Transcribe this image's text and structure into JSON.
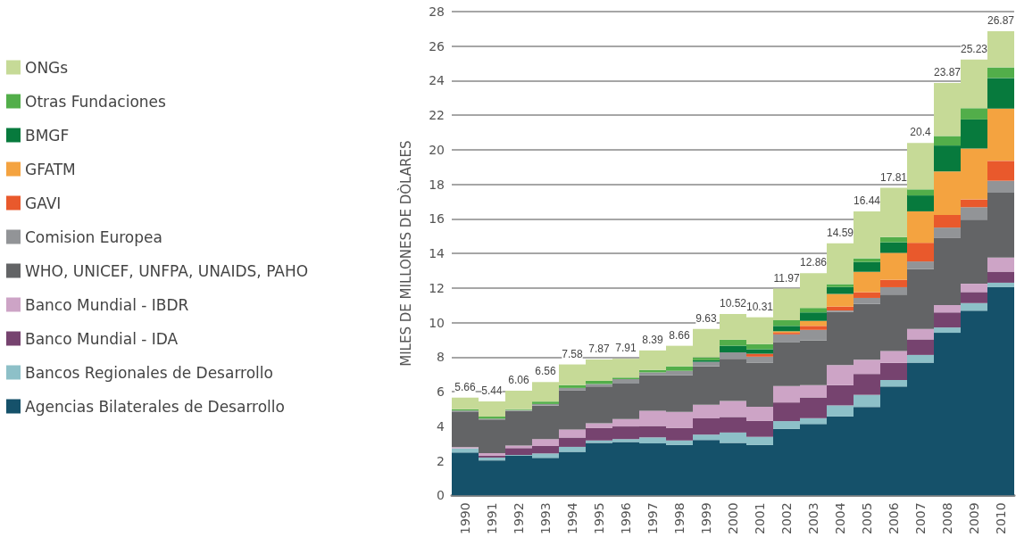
{
  "chart_data": {
    "type": "bar",
    "stacked": true,
    "ylabel": "MILES DE MILLONES DE DÒLARES",
    "categories": [
      "1990",
      "1991",
      "1992",
      "1993",
      "1994",
      "1995",
      "1996",
      "1997",
      "1998",
      "1999",
      "2000",
      "2001",
      "2002",
      "2003",
      "2004",
      "2005",
      "2006",
      "2007",
      "2008",
      "2009",
      "2010"
    ],
    "series": [
      {
        "name": "Agencias Bilaterales de Desarrollo",
        "color": "#15516a",
        "values": [
          2.48,
          2.02,
          2.29,
          2.17,
          2.52,
          3.04,
          3.09,
          3.01,
          2.92,
          3.21,
          3.04,
          2.92,
          3.85,
          4.13,
          4.57,
          5.12,
          6.3,
          7.68,
          9.41,
          10.69,
          12.05
        ]
      },
      {
        "name": "Bancos Regionales de Desarrollo",
        "color": "#8dc0c8",
        "values": [
          0.24,
          0.17,
          0.05,
          0.26,
          0.29,
          0.14,
          0.17,
          0.35,
          0.26,
          0.31,
          0.6,
          0.47,
          0.45,
          0.34,
          0.64,
          0.7,
          0.38,
          0.45,
          0.31,
          0.44,
          0.26
        ]
      },
      {
        "name": "Banco Mundial - IDA",
        "color": "#76436f",
        "values": [
          0,
          0.12,
          0.4,
          0.43,
          0.54,
          0.73,
          0.73,
          0.64,
          0.73,
          0.94,
          0.9,
          0.92,
          1.08,
          1.2,
          1.17,
          1.21,
          0.99,
          0.9,
          0.87,
          0.64,
          0.64
        ]
      },
      {
        "name": "Banco Mundial - IBDR",
        "color": "#cda4c6",
        "values": [
          0.07,
          0.14,
          0.14,
          0.4,
          0.47,
          0.26,
          0.43,
          0.9,
          0.92,
          0.78,
          0.92,
          0.82,
          0.95,
          0.71,
          1.16,
          0.82,
          0.69,
          0.61,
          0.43,
          0.48,
          0.81
        ]
      },
      {
        "name": "WHO, UNICEF, UNFPA, UNAIDS, PAHO",
        "color": "#636466",
        "values": [
          2.03,
          1.94,
          2.01,
          1.94,
          2.26,
          2.14,
          2.05,
          2.05,
          2.12,
          2.23,
          2.44,
          2.54,
          2.52,
          2.6,
          3.09,
          3.23,
          3.26,
          3.47,
          3.87,
          3.7,
          3.76
        ]
      },
      {
        "name": "Comision Europea",
        "color": "#929497",
        "values": [
          0.09,
          0.05,
          0.05,
          0.09,
          0.14,
          0.14,
          0.26,
          0.17,
          0.26,
          0.26,
          0.38,
          0.36,
          0.47,
          0.6,
          0.07,
          0.35,
          0.43,
          0.43,
          0.61,
          0.73,
          0.69
        ]
      },
      {
        "name": "GAVI",
        "color": "#e9592c",
        "values": [
          0,
          0,
          0,
          0,
          0,
          0,
          0,
          0,
          0,
          0,
          0,
          0.17,
          0.09,
          0.23,
          0.23,
          0.33,
          0.43,
          1.08,
          0.73,
          0.45,
          1.15
        ]
      },
      {
        "name": "GFATM",
        "color": "#f4a340",
        "values": [
          0,
          0,
          0,
          0,
          0,
          0,
          0,
          0,
          0,
          0,
          0,
          0,
          0.09,
          0.29,
          0.73,
          1.18,
          1.56,
          1.82,
          2.52,
          2.94,
          3.03
        ]
      },
      {
        "name": "BMGF",
        "color": "#077a3d",
        "values": [
          0,
          0,
          0,
          0,
          0,
          0,
          0,
          0,
          0,
          0.09,
          0.38,
          0.26,
          0.31,
          0.49,
          0.4,
          0.57,
          0.61,
          0.92,
          1.5,
          1.69,
          1.77
        ]
      },
      {
        "name": "Otras Fundaciones",
        "color": "#52ae4a",
        "values": [
          0.08,
          0.12,
          0.05,
          0.14,
          0.16,
          0.18,
          0.09,
          0.14,
          0.26,
          0.17,
          0.35,
          0.3,
          0.33,
          0.26,
          0.17,
          0.21,
          0.3,
          0.35,
          0.55,
          0.65,
          0.61
        ]
      },
      {
        "name": "ONGs",
        "color": "#c6da97",
        "values": [
          0.67,
          0.88,
          1.07,
          1.13,
          1.2,
          1.24,
          1.09,
          1.13,
          1.19,
          1.64,
          1.49,
          1.55,
          1.83,
          2.01,
          2.36,
          2.72,
          2.85,
          2.69,
          3.07,
          2.82,
          2.09
        ]
      }
    ],
    "totals": [
      "5.66",
      "5.44",
      "6.06",
      "6.56",
      "7.58",
      "7.87",
      "7.91",
      "8.39",
      "8.66",
      "9.63",
      "10.52",
      "10.31",
      "11.97",
      "12.86",
      "14.59",
      "16.44",
      "17.81",
      "20.4",
      "23.87",
      "25.23",
      "26.87"
    ],
    "ylim": [
      0,
      28
    ],
    "yticks": [
      0,
      2,
      4,
      6,
      8,
      10,
      12,
      14,
      16,
      18,
      20,
      22,
      24,
      26,
      28
    ],
    "grid": "y",
    "legend": "left"
  }
}
